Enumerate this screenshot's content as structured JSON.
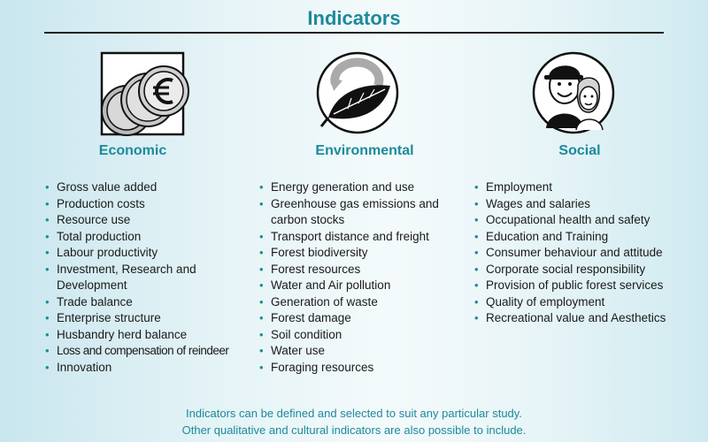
{
  "title": "Indicators",
  "colors": {
    "accent": "#1b8a9c",
    "text": "#1a1a1a",
    "rule": "#222222"
  },
  "columns": [
    {
      "heading": "Economic",
      "icon": "euro-coins-icon",
      "items": [
        "Gross value added",
        "Production costs",
        "Resource use",
        "Total production",
        "Labour productivity",
        "Investment, Research and Development",
        "Trade balance",
        "Enterprise structure",
        "Husbandry herd balance",
        "Loss and compensation of reindeer",
        "Innovation"
      ]
    },
    {
      "heading": "Environmental",
      "icon": "leaf-recycle-icon",
      "items": [
        "Energy generation and use",
        "Greenhouse gas emissions and carbon stocks",
        "Transport distance and freight",
        "Forest biodiversity",
        "Forest resources",
        "Water and Air pollution",
        "Generation of waste",
        "Forest damage",
        "Soil condition",
        "Water use",
        "Foraging resources"
      ]
    },
    {
      "heading": "Social",
      "icon": "people-icon",
      "items": [
        "Employment",
        "Wages and salaries",
        "Occupational health and safety",
        "Education and Training",
        "Consumer behaviour and attitude",
        "Corporate social responsibility",
        "Provision of public forest services",
        "Quality of employment",
        "Recreational value and Aesthetics"
      ]
    }
  ],
  "footer": {
    "line1": "Indicators can be defined and selected to suit any particular study.",
    "line2": "Other qualitative and cultural indicators are also possible to include."
  }
}
